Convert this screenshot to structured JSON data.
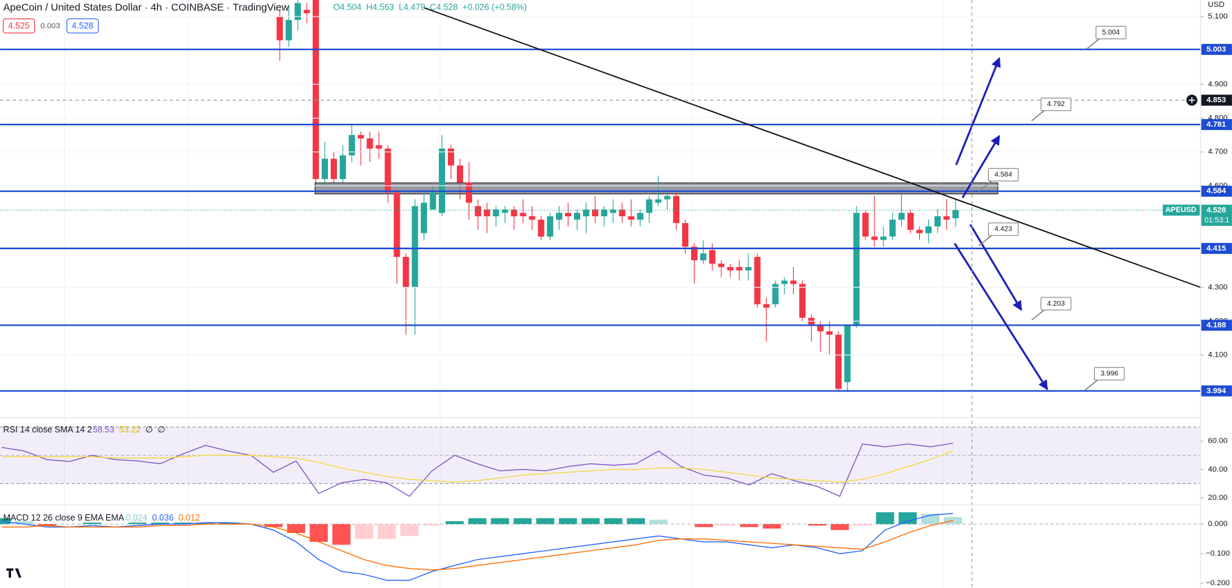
{
  "chart_data": [
    {
      "type": "candlestick",
      "title": "ApeCoin / United States Dollar · 4h · COINBASE · TradingView",
      "legend_values": [
        "O4.504",
        "H4.563",
        "L4.479",
        "C4.528",
        "+0.026 (+0.58%)"
      ],
      "quote": {
        "bid": 4.525,
        "spread": 0.003,
        "ask": 4.528
      },
      "unit": "USD",
      "open": [
        5.1,
        5.03,
        5.09,
        5.12,
        5.149,
        4.62,
        4.68,
        4.62,
        4.69,
        4.75,
        4.74,
        4.72,
        4.71,
        4.58,
        4.39,
        4.3,
        4.46,
        4.53,
        4.52,
        4.71,
        4.66,
        4.61,
        4.54,
        4.53,
        4.51,
        4.52,
        4.53,
        4.52,
        4.51,
        4.5,
        4.45,
        4.5,
        4.52,
        4.5,
        4.51,
        4.53,
        4.51,
        4.52,
        4.53,
        4.51,
        4.5,
        4.52,
        4.55,
        4.56,
        4.57,
        4.49,
        4.42,
        4.38,
        4.41,
        4.37,
        4.36,
        4.36,
        4.35,
        4.39,
        4.25,
        4.25,
        4.31,
        4.32,
        4.31,
        4.21,
        4.19,
        4.17,
        4.16,
        4.02,
        4.19,
        4.52,
        4.45,
        4.44,
        4.45,
        4.5,
        4.52,
        4.47,
        4.46,
        4.48,
        4.51,
        4.504
      ],
      "high": [
        5.12,
        5.13,
        5.149,
        5.14,
        5.149,
        4.73,
        4.7,
        4.72,
        4.78,
        4.76,
        4.76,
        4.76,
        4.72,
        4.59,
        4.4,
        4.56,
        4.59,
        4.6,
        4.75,
        4.72,
        4.68,
        4.67,
        4.56,
        4.55,
        4.54,
        4.54,
        4.54,
        4.56,
        4.54,
        4.51,
        4.52,
        4.54,
        4.55,
        4.53,
        4.55,
        4.57,
        4.54,
        4.56,
        4.55,
        4.56,
        4.53,
        4.57,
        4.63,
        4.58,
        4.58,
        4.5,
        4.43,
        4.44,
        4.43,
        4.38,
        4.37,
        4.38,
        4.4,
        4.4,
        4.27,
        4.32,
        4.33,
        4.36,
        4.32,
        4.22,
        4.2,
        4.2,
        4.17,
        4.19,
        4.54,
        4.53,
        4.57,
        4.48,
        4.52,
        4.59,
        4.53,
        4.48,
        4.5,
        4.53,
        4.56,
        4.563
      ],
      "low": [
        4.97,
        5.01,
        5.06,
        5.08,
        4.61,
        4.6,
        4.61,
        4.61,
        4.67,
        4.66,
        4.67,
        4.68,
        4.55,
        4.31,
        4.16,
        4.16,
        4.44,
        4.53,
        4.51,
        4.62,
        4.56,
        4.5,
        4.47,
        4.46,
        4.48,
        4.49,
        4.47,
        4.49,
        4.47,
        4.44,
        4.44,
        4.47,
        4.48,
        4.47,
        4.46,
        4.49,
        4.48,
        4.49,
        4.49,
        4.48,
        4.48,
        4.49,
        4.54,
        4.53,
        4.47,
        4.4,
        4.31,
        4.37,
        4.35,
        4.33,
        4.33,
        4.32,
        4.32,
        4.24,
        4.14,
        4.24,
        4.28,
        4.28,
        4.2,
        4.14,
        4.11,
        4.1,
        3.99,
        3.99,
        4.18,
        4.44,
        4.42,
        4.42,
        4.44,
        4.48,
        4.46,
        4.44,
        4.43,
        4.46,
        4.47,
        4.479
      ],
      "close": [
        5.03,
        5.09,
        5.14,
        5.11,
        4.62,
        4.68,
        4.62,
        4.69,
        4.75,
        4.74,
        4.71,
        4.71,
        4.58,
        4.39,
        4.3,
        4.54,
        4.55,
        4.58,
        4.71,
        4.66,
        4.61,
        4.55,
        4.51,
        4.51,
        4.53,
        4.53,
        4.51,
        4.51,
        4.5,
        4.45,
        4.51,
        4.52,
        4.51,
        4.52,
        4.53,
        4.51,
        4.53,
        4.53,
        4.51,
        4.5,
        4.52,
        4.56,
        4.56,
        4.57,
        4.49,
        4.42,
        4.38,
        4.4,
        4.37,
        4.36,
        4.35,
        4.35,
        4.36,
        4.25,
        4.24,
        4.31,
        4.32,
        4.31,
        4.21,
        4.19,
        4.17,
        4.16,
        4.0,
        4.19,
        4.52,
        4.45,
        4.44,
        4.45,
        4.5,
        4.52,
        4.47,
        4.46,
        4.48,
        4.51,
        4.5,
        4.528
      ],
      "up_color": "#26a69a",
      "down_color": "#f23645",
      "ylim": [
        3.915,
        5.149
      ],
      "yticks": [
        {
          "value": 5.1,
          "label": "5.100"
        },
        {
          "value": 4.9,
          "label": "4.900"
        },
        {
          "value": 4.8,
          "label": "4.800"
        },
        {
          "value": 4.7,
          "label": "4.700"
        },
        {
          "value": 4.6,
          "label": "4.600"
        },
        {
          "value": 4.3,
          "label": "4.300"
        },
        {
          "value": 4.2,
          "label": "4.200"
        },
        {
          "value": 4.1,
          "label": "4.100"
        }
      ],
      "grid": true,
      "level_color": "#1e4bd2",
      "levels": [
        {
          "value": 5.003,
          "label": "5.003"
        },
        {
          "value": 4.781,
          "label": "4.781"
        },
        {
          "value": 4.584,
          "label": "4.584"
        },
        {
          "value": 4.415,
          "label": "4.415"
        },
        {
          "value": 4.188,
          "label": "4.188"
        },
        {
          "value": 3.994,
          "label": "3.994"
        }
      ],
      "callouts": [
        {
          "value": 5.004,
          "label": "5.004"
        },
        {
          "value": 4.792,
          "label": "4.792"
        },
        {
          "value": 4.584,
          "label": "4.584"
        },
        {
          "value": 4.423,
          "label": "4.423"
        },
        {
          "value": 4.203,
          "label": "4.203"
        },
        {
          "value": 3.996,
          "label": "3.996"
        }
      ],
      "crosshair": {
        "value": 4.853,
        "label": "4.853"
      },
      "last_price": {
        "symbol": "APEUSD",
        "value": 4.528,
        "label": "4.528",
        "countdown": "01:53:1"
      }
    },
    {
      "type": "line",
      "title": "RSI 14 close SMA 14 2",
      "legend_values": [
        58.53,
        53.22,
        "∅",
        "∅"
      ],
      "ylim": [
        16.1,
        73.3
      ],
      "yticks": [
        {
          "value": 60,
          "label": "60.00"
        },
        {
          "value": 40,
          "label": "40.00"
        },
        {
          "value": 20,
          "label": "20.00"
        }
      ],
      "bands": [
        30,
        70
      ],
      "midline": 50,
      "band_color": "#7e57c2",
      "series": [
        {
          "name": "RSI",
          "color": "#7e57c2",
          "values": [
            55.6,
            53,
            47,
            45.6,
            50,
            47,
            46,
            44,
            51,
            57,
            53,
            50,
            38,
            46,
            23,
            30.5,
            33,
            30.5,
            21,
            39,
            50,
            44,
            39,
            40,
            39,
            42,
            44,
            43,
            44,
            53,
            42,
            36,
            34,
            29,
            37,
            32,
            28,
            21,
            58,
            56,
            58,
            56,
            58.53
          ]
        },
        {
          "name": "SMA",
          "color": "#f5d742",
          "values": [
            49,
            49,
            49,
            49,
            49,
            48,
            48,
            48,
            49,
            50,
            50,
            50,
            49,
            48,
            45,
            41,
            38,
            35,
            33,
            32,
            31,
            32,
            34,
            36,
            37,
            38,
            39,
            40,
            40,
            41,
            41,
            40,
            38,
            36,
            34,
            33,
            32,
            31,
            33,
            37,
            42,
            47,
            53.22
          ]
        }
      ]
    },
    {
      "type": "macd",
      "title": "MACD 12 26 close 9 EMA EMA",
      "legend_values": [
        0.024,
        0.036,
        0.012
      ],
      "ylim": [
        -0.216,
        0.06
      ],
      "yticks": [
        {
          "value": 0,
          "label": "0.000"
        },
        {
          "value": -0.1,
          "label": "−0.100"
        },
        {
          "value": -0.2,
          "label": "−0.200"
        }
      ],
      "histogram": {
        "name": "Histogram",
        "colors": [
          "#26a69a",
          "#b2dfdb",
          "#ffcdd2",
          "#ff5252"
        ],
        "values": [
          0.02,
          0.01,
          -0.005,
          0,
          0.005,
          0,
          0.005,
          0.005,
          0.005,
          0.005,
          0.005,
          0,
          -0.01,
          -0.03,
          -0.06,
          -0.07,
          -0.05,
          -0.05,
          -0.04,
          -0.005,
          0.01,
          0.02,
          0.02,
          0.02,
          0.02,
          0.02,
          0.02,
          0.02,
          0.02,
          0.015,
          0,
          -0.01,
          -0.005,
          -0.01,
          -0.015,
          0,
          -0.005,
          -0.02,
          -0.005,
          0.04,
          0.04,
          0.035,
          0.024
        ]
      },
      "series": [
        {
          "name": "MACD",
          "color": "#2962ff",
          "values": [
            0.01,
            0,
            -0.01,
            -0.01,
            -0.005,
            -0.01,
            -0.005,
            0,
            0,
            0.005,
            0.005,
            0,
            -0.02,
            -0.06,
            -0.12,
            -0.16,
            -0.17,
            -0.19,
            -0.19,
            -0.16,
            -0.14,
            -0.12,
            -0.11,
            -0.1,
            -0.09,
            -0.08,
            -0.07,
            -0.06,
            -0.05,
            -0.04,
            -0.05,
            -0.06,
            -0.06,
            -0.07,
            -0.08,
            -0.07,
            -0.08,
            -0.1,
            -0.09,
            -0.02,
            0.01,
            0.03,
            0.036
          ]
        },
        {
          "name": "Signal",
          "color": "#ff6d00",
          "values": [
            -0.01,
            -0.01,
            -0.005,
            -0.01,
            -0.01,
            -0.01,
            -0.01,
            -0.005,
            -0.005,
            0,
            0,
            0,
            -0.01,
            -0.03,
            -0.06,
            -0.09,
            -0.12,
            -0.14,
            -0.15,
            -0.155,
            -0.15,
            -0.14,
            -0.13,
            -0.12,
            -0.11,
            -0.1,
            -0.09,
            -0.08,
            -0.07,
            -0.055,
            -0.05,
            -0.05,
            -0.055,
            -0.06,
            -0.065,
            -0.07,
            -0.075,
            -0.08,
            -0.085,
            -0.06,
            -0.03,
            -0.005,
            0.012
          ]
        }
      ]
    }
  ]
}
